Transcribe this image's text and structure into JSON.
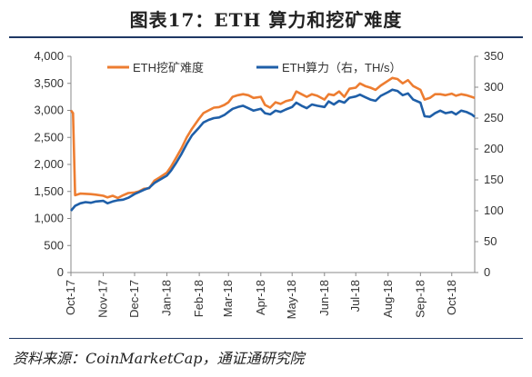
{
  "figure": {
    "title": "图表17：ETH 算力和挖矿难度",
    "source": "资料来源：CoinMarketCap，通证通研究院"
  },
  "chart_data": {
    "type": "line",
    "x_tick_labels": [
      "Oct-17",
      "Nov-17",
      "Dec-17",
      "Jan-18",
      "Feb-18",
      "Mar-18",
      "Apr-18",
      "May-18",
      "Jun-18",
      "Jul-18",
      "Aug-18",
      "Sep-18",
      "Oct-18"
    ],
    "x_tick_index": [
      0,
      31,
      61,
      92,
      123,
      151,
      182,
      212,
      243,
      273,
      304,
      335,
      365
    ],
    "x_range": [
      "2017-10-01",
      "2018-10-23"
    ],
    "y_left": {
      "ylim": [
        0,
        4000
      ],
      "ticks": [
        "0",
        "500",
        "1,000",
        "1,500",
        "2,000",
        "2,500",
        "3,000",
        "3,500",
        "4,000"
      ]
    },
    "y_right": {
      "ylim": [
        0,
        350
      ],
      "ticks": [
        "0",
        "50",
        "100",
        "150",
        "200",
        "250",
        "300",
        "350"
      ]
    },
    "legend_position": "top",
    "grid": false,
    "series": [
      {
        "name": "ETH挖矿难度",
        "axis": "left",
        "color": "#ed7d31",
        "points": [
          [
            "2017-10-01",
            3000
          ],
          [
            "2017-10-03",
            2950
          ],
          [
            "2017-10-05",
            1430
          ],
          [
            "2017-10-10",
            1460
          ],
          [
            "2017-10-20",
            1450
          ],
          [
            "2017-10-25",
            1440
          ],
          [
            "2017-11-01",
            1420
          ],
          [
            "2017-11-05",
            1390
          ],
          [
            "2017-11-10",
            1420
          ],
          [
            "2017-11-15",
            1380
          ],
          [
            "2017-11-20",
            1430
          ],
          [
            "2017-11-25",
            1470
          ],
          [
            "2017-12-01",
            1480
          ],
          [
            "2017-12-05",
            1500
          ],
          [
            "2017-12-10",
            1550
          ],
          [
            "2017-12-15",
            1560
          ],
          [
            "2017-12-20",
            1700
          ],
          [
            "2017-12-25",
            1760
          ],
          [
            "2018-01-01",
            1850
          ],
          [
            "2018-01-05",
            1960
          ],
          [
            "2018-01-10",
            2130
          ],
          [
            "2018-01-15",
            2300
          ],
          [
            "2018-01-20",
            2500
          ],
          [
            "2018-01-25",
            2660
          ],
          [
            "2018-02-01",
            2850
          ],
          [
            "2018-02-05",
            2950
          ],
          [
            "2018-02-10",
            3000
          ],
          [
            "2018-02-15",
            3050
          ],
          [
            "2018-02-20",
            3060
          ],
          [
            "2018-02-25",
            3100
          ],
          [
            "2018-03-01",
            3150
          ],
          [
            "2018-03-05",
            3250
          ],
          [
            "2018-03-10",
            3280
          ],
          [
            "2018-03-15",
            3300
          ],
          [
            "2018-03-20",
            3280
          ],
          [
            "2018-03-25",
            3230
          ],
          [
            "2018-04-01",
            3250
          ],
          [
            "2018-04-05",
            3100
          ],
          [
            "2018-04-10",
            3050
          ],
          [
            "2018-04-15",
            3150
          ],
          [
            "2018-04-20",
            3120
          ],
          [
            "2018-04-25",
            3170
          ],
          [
            "2018-05-01",
            3200
          ],
          [
            "2018-05-05",
            3350
          ],
          [
            "2018-05-10",
            3300
          ],
          [
            "2018-05-15",
            3250
          ],
          [
            "2018-05-20",
            3300
          ],
          [
            "2018-05-25",
            3270
          ],
          [
            "2018-06-01",
            3200
          ],
          [
            "2018-06-05",
            3300
          ],
          [
            "2018-06-10",
            3280
          ],
          [
            "2018-06-15",
            3350
          ],
          [
            "2018-06-20",
            3250
          ],
          [
            "2018-06-25",
            3400
          ],
          [
            "2018-07-01",
            3420
          ],
          [
            "2018-07-05",
            3500
          ],
          [
            "2018-07-10",
            3450
          ],
          [
            "2018-07-15",
            3420
          ],
          [
            "2018-07-20",
            3380
          ],
          [
            "2018-07-25",
            3460
          ],
          [
            "2018-08-01",
            3550
          ],
          [
            "2018-08-05",
            3600
          ],
          [
            "2018-08-10",
            3580
          ],
          [
            "2018-08-15",
            3500
          ],
          [
            "2018-08-20",
            3560
          ],
          [
            "2018-08-25",
            3450
          ],
          [
            "2018-09-01",
            3380
          ],
          [
            "2018-09-05",
            3200
          ],
          [
            "2018-09-10",
            3230
          ],
          [
            "2018-09-15",
            3300
          ],
          [
            "2018-09-20",
            3300
          ],
          [
            "2018-09-25",
            3280
          ],
          [
            "2018-10-01",
            3310
          ],
          [
            "2018-10-05",
            3270
          ],
          [
            "2018-10-10",
            3300
          ],
          [
            "2018-10-15",
            3280
          ],
          [
            "2018-10-20",
            3250
          ],
          [
            "2018-10-23",
            3230
          ]
        ]
      },
      {
        "name": "ETH算力（右，TH/s）",
        "axis": "right",
        "color": "#1f5fa8",
        "points": [
          [
            "2017-10-01",
            100
          ],
          [
            "2017-10-05",
            108
          ],
          [
            "2017-10-10",
            112
          ],
          [
            "2017-10-15",
            114
          ],
          [
            "2017-10-20",
            113
          ],
          [
            "2017-10-25",
            115
          ],
          [
            "2017-11-01",
            116
          ],
          [
            "2017-11-05",
            112
          ],
          [
            "2017-11-10",
            115
          ],
          [
            "2017-11-15",
            117
          ],
          [
            "2017-11-20",
            118
          ],
          [
            "2017-11-25",
            121
          ],
          [
            "2017-12-01",
            127
          ],
          [
            "2017-12-05",
            130
          ],
          [
            "2017-12-10",
            134
          ],
          [
            "2017-12-15",
            137
          ],
          [
            "2017-12-20",
            145
          ],
          [
            "2017-12-25",
            150
          ],
          [
            "2018-01-01",
            157
          ],
          [
            "2018-01-05",
            165
          ],
          [
            "2018-01-10",
            178
          ],
          [
            "2018-01-15",
            192
          ],
          [
            "2018-01-20",
            208
          ],
          [
            "2018-01-25",
            222
          ],
          [
            "2018-02-01",
            235
          ],
          [
            "2018-02-05",
            243
          ],
          [
            "2018-02-10",
            247
          ],
          [
            "2018-02-15",
            250
          ],
          [
            "2018-02-20",
            251
          ],
          [
            "2018-02-25",
            255
          ],
          [
            "2018-03-01",
            260
          ],
          [
            "2018-03-05",
            265
          ],
          [
            "2018-03-10",
            268
          ],
          [
            "2018-03-15",
            270
          ],
          [
            "2018-03-20",
            266
          ],
          [
            "2018-03-25",
            262
          ],
          [
            "2018-04-01",
            265
          ],
          [
            "2018-04-05",
            258
          ],
          [
            "2018-04-10",
            256
          ],
          [
            "2018-04-15",
            262
          ],
          [
            "2018-04-20",
            260
          ],
          [
            "2018-04-25",
            264
          ],
          [
            "2018-05-01",
            268
          ],
          [
            "2018-05-05",
            275
          ],
          [
            "2018-05-10",
            270
          ],
          [
            "2018-05-15",
            266
          ],
          [
            "2018-05-20",
            272
          ],
          [
            "2018-05-25",
            270
          ],
          [
            "2018-06-01",
            268
          ],
          [
            "2018-06-05",
            277
          ],
          [
            "2018-06-10",
            272
          ],
          [
            "2018-06-15",
            278
          ],
          [
            "2018-06-20",
            275
          ],
          [
            "2018-06-25",
            283
          ],
          [
            "2018-07-01",
            285
          ],
          [
            "2018-07-05",
            288
          ],
          [
            "2018-07-10",
            284
          ],
          [
            "2018-07-15",
            280
          ],
          [
            "2018-07-20",
            278
          ],
          [
            "2018-07-25",
            286
          ],
          [
            "2018-08-01",
            292
          ],
          [
            "2018-08-05",
            296
          ],
          [
            "2018-08-10",
            294
          ],
          [
            "2018-08-15",
            287
          ],
          [
            "2018-08-20",
            290
          ],
          [
            "2018-08-25",
            280
          ],
          [
            "2018-09-01",
            275
          ],
          [
            "2018-09-05",
            253
          ],
          [
            "2018-09-10",
            252
          ],
          [
            "2018-09-15",
            258
          ],
          [
            "2018-09-20",
            262
          ],
          [
            "2018-09-25",
            258
          ],
          [
            "2018-10-01",
            260
          ],
          [
            "2018-10-05",
            256
          ],
          [
            "2018-10-10",
            262
          ],
          [
            "2018-10-15",
            260
          ],
          [
            "2018-10-20",
            256
          ],
          [
            "2018-10-23",
            252
          ]
        ]
      }
    ]
  }
}
